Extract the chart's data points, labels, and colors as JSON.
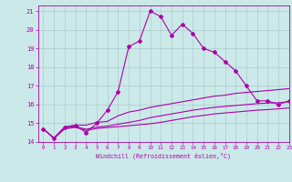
{
  "xlabel": "Windchill (Refroidissement éolien,°C)",
  "ylabel": "",
  "xlim": [
    -0.5,
    23
  ],
  "ylim": [
    14,
    21.3
  ],
  "yticks": [
    14,
    15,
    16,
    17,
    18,
    19,
    20,
    21
  ],
  "xticks": [
    0,
    1,
    2,
    3,
    4,
    5,
    6,
    7,
    8,
    9,
    10,
    11,
    12,
    13,
    14,
    15,
    16,
    17,
    18,
    19,
    20,
    21,
    22,
    23
  ],
  "background_color": "#cce9e9",
  "grid_color": "#aacccc",
  "line_color": "#aa00aa",
  "line1_x": [
    0,
    1,
    2,
    3,
    4,
    5,
    6,
    7,
    8,
    9,
    10,
    11,
    12,
    13,
    14,
    15,
    16,
    17,
    18,
    19,
    20,
    21,
    22,
    23
  ],
  "line1_y": [
    14.7,
    14.2,
    14.8,
    14.9,
    14.5,
    15.0,
    15.7,
    16.7,
    19.1,
    19.4,
    21.0,
    20.7,
    19.7,
    20.3,
    19.8,
    19.0,
    18.8,
    18.3,
    17.8,
    17.0,
    16.2,
    16.2,
    16.0,
    16.2
  ],
  "line2_x": [
    0,
    1,
    2,
    3,
    4,
    5,
    6,
    7,
    8,
    9,
    10,
    11,
    12,
    13,
    14,
    15,
    16,
    17,
    18,
    19,
    20,
    21,
    22,
    23
  ],
  "line2_y": [
    14.7,
    14.2,
    14.8,
    14.9,
    14.9,
    15.05,
    15.1,
    15.4,
    15.6,
    15.7,
    15.85,
    15.95,
    16.05,
    16.15,
    16.25,
    16.35,
    16.45,
    16.5,
    16.6,
    16.65,
    16.7,
    16.75,
    16.8,
    16.85
  ],
  "line3_x": [
    0,
    1,
    2,
    3,
    4,
    5,
    6,
    7,
    8,
    9,
    10,
    11,
    12,
    13,
    14,
    15,
    16,
    17,
    18,
    19,
    20,
    21,
    22,
    23
  ],
  "line3_y": [
    14.7,
    14.2,
    14.75,
    14.82,
    14.68,
    14.8,
    14.85,
    14.95,
    15.05,
    15.15,
    15.3,
    15.4,
    15.5,
    15.6,
    15.7,
    15.78,
    15.85,
    15.9,
    15.95,
    16.0,
    16.05,
    16.08,
    16.1,
    16.15
  ],
  "line4_x": [
    0,
    1,
    2,
    3,
    4,
    5,
    6,
    7,
    8,
    9,
    10,
    11,
    12,
    13,
    14,
    15,
    16,
    17,
    18,
    19,
    20,
    21,
    22,
    23
  ],
  "line4_y": [
    14.7,
    14.2,
    14.7,
    14.78,
    14.62,
    14.72,
    14.77,
    14.82,
    14.87,
    14.92,
    14.97,
    15.05,
    15.15,
    15.25,
    15.35,
    15.42,
    15.5,
    15.55,
    15.6,
    15.65,
    15.7,
    15.73,
    15.77,
    15.82
  ]
}
